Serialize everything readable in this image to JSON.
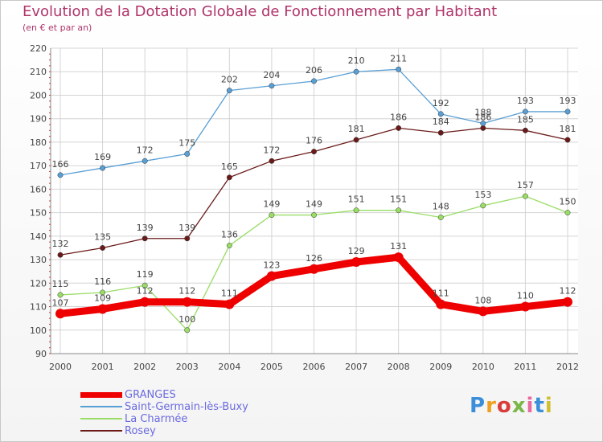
{
  "title": "Evolution de la Dotation Globale de Fonctionnement par Habitant",
  "subtitle": "(en € et par an)",
  "logo": "Proxiti",
  "chart_data": {
    "type": "line",
    "x": [
      "2000",
      "2001",
      "2002",
      "2003",
      "2004",
      "2005",
      "2006",
      "2007",
      "2008",
      "2009",
      "2010",
      "2011",
      "2012"
    ],
    "ylim": [
      90,
      220
    ],
    "yticks": [
      90,
      100,
      110,
      120,
      130,
      140,
      150,
      160,
      170,
      180,
      190,
      200,
      210,
      220
    ],
    "grid": true,
    "legend_position": "bottom-left",
    "series": [
      {
        "name": "GRANGES",
        "color": "#ee0000",
        "values": [
          107,
          109,
          112,
          112,
          111,
          123,
          126,
          129,
          131,
          111,
          108,
          110,
          112
        ]
      },
      {
        "name": "Saint-Germain-lès-Buxy",
        "color": "#5a9fd4",
        "values": [
          166,
          169,
          172,
          175,
          202,
          204,
          206,
          210,
          211,
          192,
          188,
          193,
          193
        ]
      },
      {
        "name": "La Charmée",
        "color": "#99dd66",
        "values": [
          115,
          116,
          119,
          100,
          136,
          149,
          149,
          151,
          151,
          148,
          153,
          157,
          150
        ]
      },
      {
        "name": "Rosey",
        "color": "#6b1a1a",
        "values": [
          132,
          135,
          139,
          139,
          165,
          172,
          176,
          181,
          186,
          184,
          186,
          185,
          181
        ]
      }
    ]
  }
}
